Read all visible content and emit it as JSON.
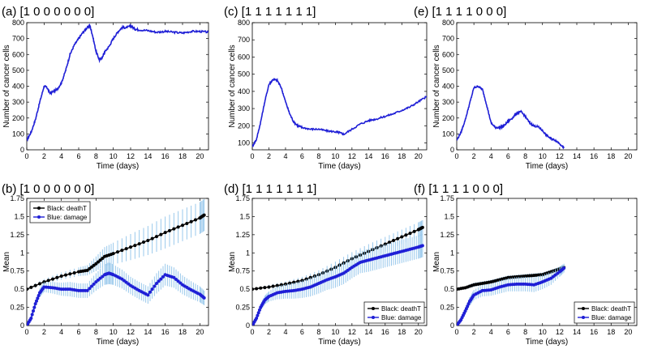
{
  "colors": {
    "blue": "#1f1fd6",
    "black": "#000000",
    "errorbar": "#8fc3ea",
    "legend_border": "#000000"
  },
  "chart_data": [
    {
      "panel_label": "(a) [1 0 0 0 0 0 0]",
      "type": "line",
      "xlabel": "Time (days)",
      "ylabel": "Number of cancer cells",
      "xlim": [
        0,
        21
      ],
      "ylim": [
        0,
        800
      ],
      "xticks": [
        "0",
        "2",
        "4",
        "6",
        "8",
        "10",
        "12",
        "14",
        "16",
        "18",
        "20"
      ],
      "yticks": [
        "0",
        "100",
        "200",
        "300",
        "400",
        "500",
        "600",
        "700",
        "800"
      ],
      "series": [
        {
          "name": "cells",
          "color": "#1f1fd6",
          "noise": 6,
          "x": [
            0,
            0.5,
            1,
            1.5,
            2,
            2.3,
            2.7,
            3,
            3.5,
            4,
            4.5,
            5,
            5.5,
            6,
            6.5,
            7,
            7.3,
            7.6,
            8,
            8.4,
            8.7,
            9,
            9.5,
            10,
            10.5,
            11,
            11.5,
            12,
            12.5,
            13,
            14,
            15,
            16,
            17,
            18,
            19,
            20,
            21
          ],
          "y": [
            60,
            110,
            190,
            300,
            400,
            395,
            355,
            365,
            380,
            420,
            500,
            600,
            660,
            700,
            740,
            770,
            780,
            720,
            620,
            565,
            580,
            615,
            650,
            700,
            740,
            770,
            768,
            780,
            760,
            755,
            750,
            740,
            745,
            740,
            735,
            745,
            745,
            740
          ]
        }
      ]
    },
    {
      "panel_label": "(c) [1 1 1 1 1 1 1]",
      "type": "line",
      "xlabel": "Time (days)",
      "ylabel": "Number of cancer cells",
      "xlim": [
        0,
        21
      ],
      "ylim": [
        60,
        800
      ],
      "xticks": [
        "0",
        "2",
        "4",
        "6",
        "8",
        "10",
        "12",
        "14",
        "16",
        "18",
        "20"
      ],
      "yticks": [
        "100",
        "200",
        "300",
        "400",
        "500",
        "600",
        "700",
        "800"
      ],
      "series": [
        {
          "name": "cells",
          "color": "#1f1fd6",
          "noise": 5,
          "x": [
            0,
            0.5,
            1,
            1.5,
            2,
            2.5,
            3,
            3.5,
            4,
            4.5,
            5,
            5.5,
            6,
            7,
            8,
            9,
            10,
            10.5,
            11,
            12,
            13,
            14,
            15,
            16,
            17,
            18,
            19,
            20,
            21
          ],
          "y": [
            80,
            120,
            220,
            340,
            440,
            470,
            465,
            420,
            340,
            270,
            220,
            200,
            190,
            180,
            180,
            170,
            165,
            160,
            150,
            180,
            210,
            230,
            240,
            255,
            270,
            290,
            310,
            340,
            370
          ]
        }
      ]
    },
    {
      "panel_label": "(e) [1 1 1 1 0 0 0]",
      "type": "line",
      "xlabel": "Time (days)",
      "ylabel": "Number of cancer cells",
      "xlim": [
        0,
        21
      ],
      "ylim": [
        0,
        800
      ],
      "xticks": [
        "0",
        "2",
        "4",
        "6",
        "8",
        "10",
        "12",
        "14",
        "16",
        "18",
        "20"
      ],
      "yticks": [
        "0",
        "100",
        "200",
        "300",
        "400",
        "500",
        "600",
        "700",
        "800"
      ],
      "series": [
        {
          "name": "cells",
          "color": "#1f1fd6",
          "noise": 5,
          "x": [
            0,
            0.5,
            1,
            1.5,
            2,
            2.5,
            3,
            3.5,
            4,
            4.5,
            5,
            5.5,
            6,
            6.5,
            7,
            7.5,
            8,
            8.5,
            9,
            9.5,
            10,
            10.5,
            11,
            11.5,
            12,
            12.5
          ],
          "y": [
            60,
            110,
            190,
            290,
            390,
            400,
            380,
            280,
            170,
            140,
            140,
            150,
            180,
            200,
            230,
            240,
            210,
            170,
            150,
            145,
            120,
            90,
            70,
            60,
            40,
            10
          ]
        }
      ]
    },
    {
      "panel_label": "(b) [1 0 0 0 0 0 0]",
      "type": "line",
      "xlabel": "Time (days)",
      "ylabel": "Mean",
      "xlim": [
        0,
        21
      ],
      "ylim": [
        0,
        1.75
      ],
      "xticks": [
        "0",
        "2",
        "4",
        "6",
        "8",
        "10",
        "12",
        "14",
        "16",
        "18",
        "20"
      ],
      "yticks": [
        "0",
        "0.25",
        "0.5",
        "0.75",
        "1",
        "1.25",
        "1.5",
        "1.75"
      ],
      "legend": {
        "position": "top-left",
        "entries": [
          "Black: deathT",
          "Blue: damage"
        ]
      },
      "series": [
        {
          "name": "Black: deathT",
          "color": "#000000",
          "x": [
            0,
            2,
            4,
            6,
            7,
            8,
            9,
            10,
            12,
            14,
            16,
            18,
            20,
            20.5
          ],
          "y": [
            0.5,
            0.6,
            0.68,
            0.74,
            0.76,
            0.85,
            0.95,
            0.99,
            1.08,
            1.17,
            1.28,
            1.38,
            1.48,
            1.52
          ],
          "err": [
            0.02,
            0.04,
            0.05,
            0.06,
            0.07,
            0.1,
            0.13,
            0.15,
            0.18,
            0.2,
            0.22,
            0.22,
            0.22,
            0.22
          ]
        },
        {
          "name": "Blue: damage",
          "color": "#1f1fd6",
          "x": [
            0,
            0.5,
            1,
            1.5,
            2,
            3,
            4,
            5,
            6,
            7,
            8,
            9,
            9.5,
            10,
            11,
            12,
            13,
            14,
            15,
            16,
            17,
            18,
            19,
            20,
            20.5
          ],
          "y": [
            0,
            0.1,
            0.3,
            0.45,
            0.53,
            0.52,
            0.5,
            0.5,
            0.48,
            0.48,
            0.6,
            0.7,
            0.72,
            0.7,
            0.64,
            0.55,
            0.48,
            0.42,
            0.58,
            0.7,
            0.66,
            0.56,
            0.49,
            0.43,
            0.38
          ],
          "err": [
            0.02,
            0.03,
            0.05,
            0.06,
            0.07,
            0.08,
            0.09,
            0.1,
            0.1,
            0.1,
            0.12,
            0.14,
            0.15,
            0.14,
            0.13,
            0.12,
            0.12,
            0.12,
            0.14,
            0.15,
            0.14,
            0.13,
            0.12,
            0.11,
            0.1
          ]
        }
      ]
    },
    {
      "panel_label": "(d) [1 1 1 1 1 1 1]",
      "type": "line",
      "xlabel": "Time (days)",
      "ylabel": "Mean",
      "xlim": [
        0,
        21
      ],
      "ylim": [
        0,
        1.75
      ],
      "xticks": [
        "0",
        "2",
        "4",
        "6",
        "8",
        "10",
        "12",
        "14",
        "16",
        "18",
        "20"
      ],
      "yticks": [
        "0",
        "0.25",
        "0.5",
        "0.75",
        "1",
        "1.25",
        "1.5",
        "1.75"
      ],
      "legend": {
        "position": "bottom-right",
        "entries": [
          "Black: deathT",
          "Blue: damage"
        ]
      },
      "series": [
        {
          "name": "Black: deathT",
          "color": "#000000",
          "x": [
            0,
            2,
            4,
            6,
            8,
            10,
            12,
            14,
            16,
            18,
            20,
            20.5
          ],
          "y": [
            0.5,
            0.53,
            0.57,
            0.62,
            0.7,
            0.8,
            0.92,
            1.02,
            1.12,
            1.22,
            1.32,
            1.35
          ],
          "err": [
            0.01,
            0.03,
            0.04,
            0.05,
            0.06,
            0.08,
            0.09,
            0.1,
            0.1,
            0.1,
            0.1,
            0.1
          ]
        },
        {
          "name": "Blue: damage",
          "color": "#1f1fd6",
          "x": [
            0,
            0.5,
            1,
            1.5,
            2,
            3,
            4,
            5,
            6,
            7,
            8,
            9,
            10,
            11,
            12,
            13,
            14,
            15,
            16,
            17,
            18,
            19,
            20,
            20.5
          ],
          "y": [
            0,
            0.1,
            0.25,
            0.35,
            0.4,
            0.45,
            0.47,
            0.48,
            0.5,
            0.53,
            0.58,
            0.63,
            0.67,
            0.72,
            0.8,
            0.87,
            0.9,
            0.93,
            0.96,
            0.99,
            1.02,
            1.05,
            1.08,
            1.1
          ],
          "err": [
            0.02,
            0.03,
            0.05,
            0.06,
            0.07,
            0.09,
            0.1,
            0.11,
            0.12,
            0.13,
            0.14,
            0.14,
            0.15,
            0.15,
            0.15,
            0.15,
            0.16,
            0.16,
            0.16,
            0.16,
            0.16,
            0.16,
            0.16,
            0.16
          ]
        }
      ]
    },
    {
      "panel_label": "(f) [1 1 1 1 0 0 0]",
      "type": "line",
      "xlabel": "Time (days)",
      "ylabel": "Mean",
      "xlim": [
        0,
        21
      ],
      "ylim": [
        0,
        1.75
      ],
      "xticks": [
        "0",
        "2",
        "4",
        "6",
        "8",
        "10",
        "12",
        "14",
        "16",
        "18",
        "20"
      ],
      "yticks": [
        "0",
        "0.25",
        "0.5",
        "0.75",
        "1",
        "1.25",
        "1.5",
        "1.75"
      ],
      "legend": {
        "position": "bottom-right",
        "entries": [
          "Black: deathT",
          "Blue: damage"
        ]
      },
      "series": [
        {
          "name": "Black: deathT",
          "color": "#000000",
          "x": [
            0,
            1,
            2,
            3,
            4,
            5,
            6,
            7,
            8,
            9,
            10,
            11,
            12,
            12.5
          ],
          "y": [
            0.5,
            0.52,
            0.56,
            0.58,
            0.6,
            0.63,
            0.66,
            0.67,
            0.68,
            0.69,
            0.7,
            0.74,
            0.78,
            0.8
          ],
          "err": [
            0.01,
            0.02,
            0.03,
            0.03,
            0.03,
            0.03,
            0.03,
            0.03,
            0.03,
            0.03,
            0.03,
            0.03,
            0.03,
            0.03
          ]
        },
        {
          "name": "Blue: damage",
          "color": "#1f1fd6",
          "x": [
            0,
            0.5,
            1,
            1.5,
            2,
            3,
            4,
            5,
            6,
            7,
            8,
            9,
            10,
            11,
            12,
            12.5
          ],
          "y": [
            0,
            0.08,
            0.2,
            0.33,
            0.42,
            0.48,
            0.49,
            0.53,
            0.56,
            0.57,
            0.57,
            0.56,
            0.6,
            0.65,
            0.74,
            0.79
          ],
          "err": [
            0.02,
            0.03,
            0.05,
            0.06,
            0.07,
            0.08,
            0.08,
            0.09,
            0.09,
            0.1,
            0.1,
            0.1,
            0.1,
            0.09,
            0.07,
            0.06
          ]
        }
      ]
    }
  ]
}
